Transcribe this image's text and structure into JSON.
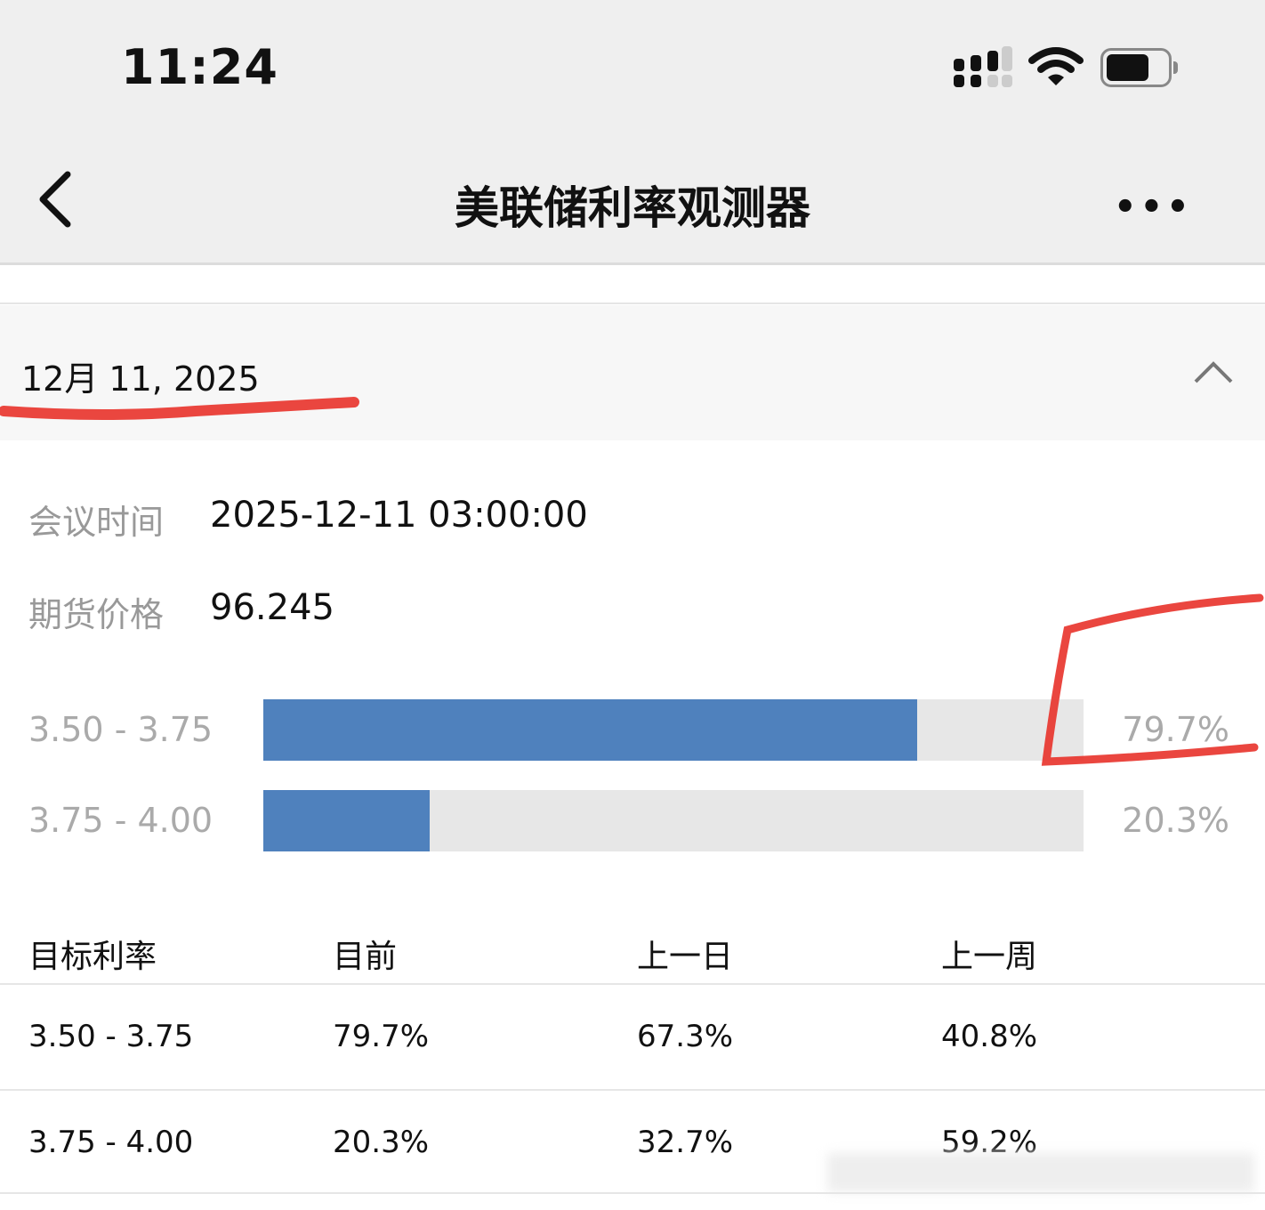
{
  "status_bar": {
    "time": "11:24",
    "icons": [
      "signal-icon",
      "wifi-icon",
      "battery-icon"
    ],
    "battery_level": 0.65
  },
  "nav": {
    "title": "美联储利率观测器",
    "back_icon": "chevron-left-icon",
    "more_label": "•••"
  },
  "meeting": {
    "date": "12月 11, 2025",
    "collapse_icon": "chevron-up-icon",
    "time_label": "会议时间",
    "time_value": "2025-12-11 03:00:00",
    "price_label": "期货价格",
    "price_value": "96.245"
  },
  "bars": [
    {
      "range": "3.50 - 3.75",
      "pct_label": "79.7%",
      "value": 79.7
    },
    {
      "range": "3.75 - 4.00",
      "pct_label": "20.3%",
      "value": 20.3
    }
  ],
  "colors": {
    "bar_fill": "#4f81bd",
    "bar_track": "#e7e7e7",
    "annotation": "#e8322a"
  },
  "table": {
    "headers": [
      "目标利率",
      "目前",
      "上一日",
      "上一周"
    ],
    "rows": [
      [
        "3.50 - 3.75",
        "79.7%",
        "67.3%",
        "40.8%"
      ],
      [
        "3.75 - 4.00",
        "20.3%",
        "32.7%",
        "59.2%"
      ]
    ]
  }
}
